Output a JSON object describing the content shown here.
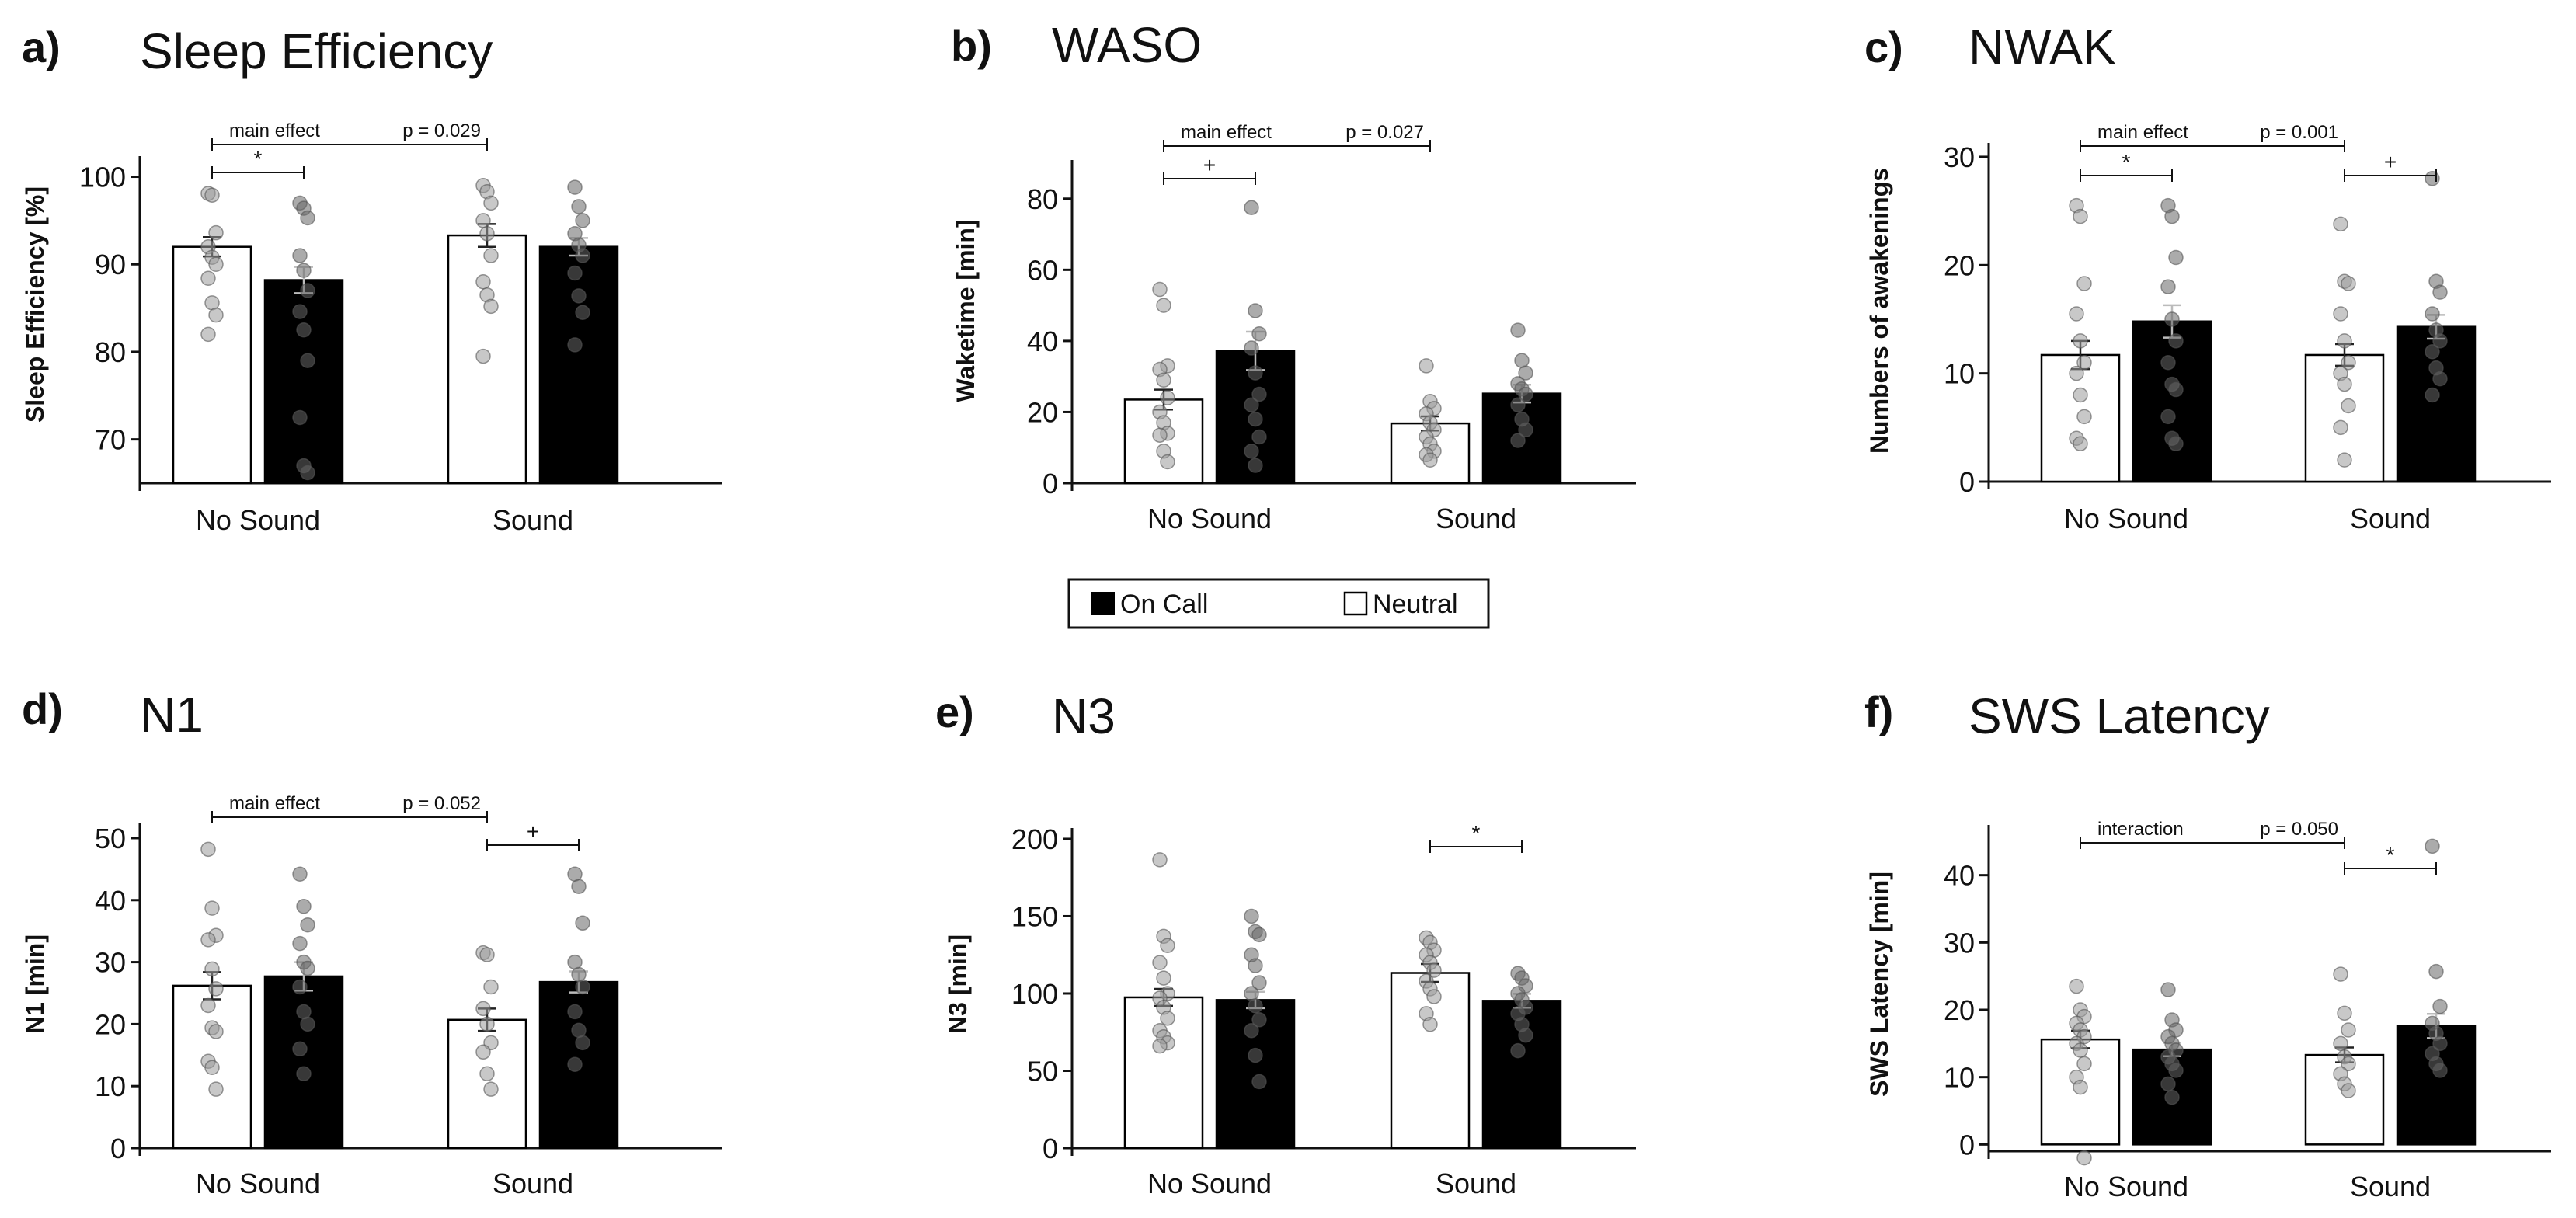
{
  "legend": {
    "items": [
      {
        "label": "On Call",
        "color": "#000000"
      },
      {
        "label": "Neutral",
        "color": "#ffffff"
      }
    ]
  },
  "chart_data": [
    {
      "panel": "a)",
      "type": "bar",
      "title": "Sleep Efficiency",
      "ylabel": "Sleep Efficiency [%]",
      "ylim": [
        65,
        102
      ],
      "yticks": [
        70,
        80,
        90,
        100
      ],
      "categories": [
        "No Sound",
        "Sound"
      ],
      "series": [
        {
          "name": "Neutral",
          "values": [
            92.0,
            93.3
          ],
          "sem": [
            1.1,
            1.3
          ],
          "points": [
            [
              98.1,
              97.9,
              93.6,
              92.0,
              90.8,
              90.0,
              88.4,
              85.6,
              84.2,
              82.0
            ],
            [
              99.0,
              98.3,
              97.0,
              95.0,
              93.5,
              91.0,
              88.0,
              86.5,
              85.2,
              79.5
            ]
          ]
        },
        {
          "name": "On Call",
          "values": [
            88.2,
            92.0
          ],
          "sem": [
            1.5,
            1.0
          ],
          "points": [
            [
              97.0,
              96.4,
              95.3,
              91.0,
              89.3,
              87.0,
              84.6,
              82.5,
              79.0,
              72.5,
              67.0,
              66.2
            ],
            [
              98.8,
              96.6,
              95.0,
              93.5,
              92.2,
              91.0,
              89.0,
              86.4,
              84.5,
              80.8
            ]
          ]
        }
      ],
      "annotations": [
        {
          "kind": "main",
          "text": "main effect",
          "p": "p = 0.029",
          "from": 0,
          "to": 1
        },
        {
          "kind": "within",
          "text": "*",
          "cat": 0
        }
      ]
    },
    {
      "panel": "b)",
      "type": "bar",
      "title": "WASO",
      "ylabel": "Waketime [min]",
      "ylim": [
        0,
        90
      ],
      "yticks": [
        0,
        20,
        40,
        60,
        80
      ],
      "categories": [
        "No Sound",
        "Sound"
      ],
      "series": [
        {
          "name": "Neutral",
          "values": [
            23.5,
            16.8
          ],
          "sem": [
            2.8,
            2.0
          ],
          "points": [
            [
              54.5,
              50.0,
              33.0,
              32.0,
              29.0,
              24.0,
              20.0,
              17.0,
              14.0,
              13.5,
              9.0,
              6.0
            ],
            [
              33.0,
              23.0,
              21.0,
              19.5,
              17.0,
              15.0,
              13.0,
              11.0,
              9.0,
              8.0,
              6.5
            ]
          ]
        },
        {
          "name": "On Call",
          "values": [
            37.2,
            25.2
          ],
          "sem": [
            5.4,
            2.5
          ],
          "points": [
            [
              77.5,
              48.5,
              42.0,
              38.0,
              31.0,
              25.0,
              22.0,
              18.0,
              13.0,
              9.0,
              5.0
            ],
            [
              43.0,
              34.5,
              31.0,
              28.0,
              26.5,
              25.0,
              22.0,
              18.0,
              15.0,
              12.0
            ]
          ]
        }
      ],
      "annotations": [
        {
          "kind": "main",
          "text": "main effect",
          "p": "p = 0.027",
          "from": 0,
          "to": 1
        },
        {
          "kind": "within",
          "text": "+",
          "cat": 0
        }
      ]
    },
    {
      "panel": "c)",
      "type": "bar",
      "title": "NWAK",
      "ylabel": "Numbers of awakenings",
      "ylim": [
        0,
        31
      ],
      "yticks": [
        0,
        10,
        20,
        30
      ],
      "categories": [
        "No Sound",
        "Sound"
      ],
      "series": [
        {
          "name": "Neutral",
          "values": [
            11.7,
            11.7
          ],
          "sem": [
            1.3,
            1.0
          ],
          "points": [
            [
              25.5,
              24.5,
              18.3,
              15.5,
              13.0,
              11.0,
              10.0,
              8.0,
              6.0,
              4.0,
              3.5
            ],
            [
              23.8,
              18.5,
              18.3,
              15.5,
              13.0,
              11.0,
              10.0,
              9.0,
              7.0,
              5.0,
              2.0
            ]
          ]
        },
        {
          "name": "On Call",
          "values": [
            14.8,
            14.3
          ],
          "sem": [
            1.5,
            1.1
          ],
          "points": [
            [
              25.5,
              24.5,
              20.7,
              18.0,
              15.0,
              13.0,
              11.0,
              9.0,
              8.5,
              6.0,
              4.0,
              3.5
            ],
            [
              28.0,
              18.5,
              17.5,
              15.5,
              14.0,
              13.0,
              12.0,
              10.5,
              9.5,
              8.0
            ]
          ]
        }
      ],
      "annotations": [
        {
          "kind": "main",
          "text": "main effect",
          "p": "p = 0.001",
          "from": 0,
          "to": 1
        },
        {
          "kind": "within",
          "text": "*",
          "cat": 0
        },
        {
          "kind": "within",
          "text": "+",
          "cat": 1
        }
      ]
    },
    {
      "panel": "d)",
      "type": "bar",
      "title": "N1",
      "ylabel": "N1 [min]",
      "ylim": [
        0,
        52
      ],
      "yticks": [
        0,
        10,
        20,
        30,
        40,
        50
      ],
      "categories": [
        "No Sound",
        "Sound"
      ],
      "series": [
        {
          "name": "Neutral",
          "values": [
            26.2,
            20.7
          ],
          "sem": [
            2.2,
            1.8
          ],
          "points": [
            [
              48.2,
              38.7,
              34.3,
              33.6,
              28.9,
              25.7,
              23.0,
              19.4,
              18.8,
              14.0,
              13.0,
              9.5
            ],
            [
              31.5,
              31.2,
              26.0,
              22.5,
              20.0,
              17.0,
              15.5,
              12.0,
              9.5
            ]
          ]
        },
        {
          "name": "On Call",
          "values": [
            27.7,
            26.8
          ],
          "sem": [
            2.3,
            1.7
          ],
          "points": [
            [
              44.2,
              39.0,
              36.0,
              33.0,
              30.0,
              29.0,
              26.0,
              22.0,
              20.0,
              16.0,
              12.0
            ],
            [
              44.2,
              42.2,
              36.3,
              30.0,
              28.0,
              26.0,
              22.0,
              19.0,
              17.0,
              13.5
            ]
          ]
        }
      ],
      "annotations": [
        {
          "kind": "main",
          "text": "main effect",
          "p": "p = 0.052",
          "from": 0,
          "to": 1
        },
        {
          "kind": "within",
          "text": "+",
          "cat": 1
        }
      ]
    },
    {
      "panel": "e)",
      "type": "bar",
      "title": "N3",
      "ylabel": "N3 [min]",
      "ylim": [
        0,
        205
      ],
      "yticks": [
        0,
        50,
        100,
        150,
        200
      ],
      "categories": [
        "No Sound",
        "Sound"
      ],
      "series": [
        {
          "name": "Neutral",
          "values": [
            97.5,
            113.3
          ],
          "sem": [
            5.5,
            5.8
          ],
          "points": [
            [
              186.5,
              137.0,
              131.0,
              120.0,
              110.0,
              100.0,
              97.0,
              91.0,
              84.0,
              76.0,
              72.0,
              68.0,
              66.0
            ],
            [
              136.0,
              133.0,
              128.0,
              125.0,
              120.0,
              115.0,
              108.0,
              103.0,
              98.0,
              87.0,
              80.0
            ]
          ]
        },
        {
          "name": "On Call",
          "values": [
            95.8,
            95.3
          ],
          "sem": [
            5.3,
            4.5
          ],
          "points": [
            [
              150.0,
              140.0,
              138.0,
              125.0,
              118.0,
              107.0,
              100.0,
              92.0,
              83.0,
              76.0,
              60.0,
              43.0
            ],
            [
              113.0,
              110.0,
              105.0,
              100.0,
              96.0,
              91.0,
              87.0,
              80.0,
              73.0,
              63.0
            ]
          ]
        }
      ],
      "annotations": [
        {
          "kind": "within",
          "text": "*",
          "cat": 1
        }
      ]
    },
    {
      "panel": "f)",
      "type": "bar",
      "title": "SWS Latency",
      "ylabel": "SWS Latency [min]",
      "ylim": [
        -1,
        47
      ],
      "yticks": [
        0,
        10,
        20,
        30,
        40
      ],
      "categories": [
        "No Sound",
        "Sound"
      ],
      "series": [
        {
          "name": "Neutral",
          "values": [
            15.6,
            13.3
          ],
          "sem": [
            1.3,
            1.1
          ],
          "points": [
            [
              23.5,
              20.0,
              19.0,
              18.0,
              17.0,
              16.0,
              15.0,
              14.0,
              12.0,
              10.0,
              8.5,
              -2.0
            ],
            [
              25.3,
              19.5,
              17.0,
              15.0,
              13.0,
              12.0,
              10.5,
              9.0,
              8.0
            ]
          ]
        },
        {
          "name": "On Call",
          "values": [
            14.1,
            17.6
          ],
          "sem": [
            1.0,
            1.8
          ],
          "points": [
            [
              23.0,
              18.5,
              17.0,
              16.0,
              15.0,
              14.0,
              13.0,
              12.0,
              11.0,
              9.0,
              7.0
            ],
            [
              44.3,
              25.7,
              20.5,
              18.0,
              16.5,
              15.0,
              13.5,
              12.0,
              11.0
            ]
          ]
        }
      ],
      "annotations": [
        {
          "kind": "main",
          "text": "interaction",
          "p": "p = 0.050",
          "from": 0,
          "to": 1
        },
        {
          "kind": "within",
          "text": "*",
          "cat": 1
        }
      ]
    }
  ]
}
